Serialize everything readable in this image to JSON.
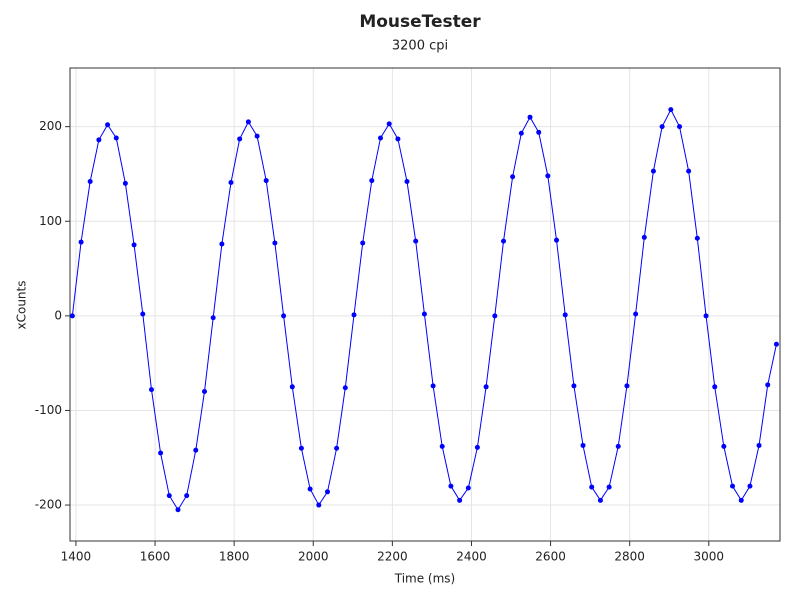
{
  "chart_data": {
    "type": "line",
    "title": "MouseTester",
    "subtitle": "3200 cpi",
    "x_label": "Time (ms)",
    "y_label": "xCounts",
    "x": [
      1391,
      1413,
      1436,
      1458,
      1480,
      1502,
      1525,
      1547,
      1569,
      1591,
      1614,
      1636,
      1658,
      1680,
      1703,
      1725,
      1747,
      1769,
      1792,
      1814,
      1836,
      1858,
      1881,
      1903,
      1925,
      1947,
      1970,
      1992,
      2014,
      2036,
      2059,
      2081,
      2103,
      2125,
      2148,
      2170,
      2192,
      2214,
      2237,
      2259,
      2281,
      2303,
      2326,
      2348,
      2370,
      2392,
      2415,
      2437,
      2459,
      2481,
      2504,
      2526,
      2548,
      2570,
      2593,
      2615,
      2637,
      2659,
      2682,
      2704,
      2726,
      2748,
      2771,
      2793,
      2815,
      2837,
      2860,
      2882,
      2904,
      2926,
      2949,
      2971,
      2993,
      3015,
      3038,
      3060,
      3082,
      3104,
      3127,
      3149,
      3171
    ],
    "series": [
      {
        "name": "xCounts",
        "color": "#0000ff",
        "values": [
          0,
          78,
          142,
          186,
          202,
          188,
          140,
          75,
          2,
          -78,
          -145,
          -190,
          -205,
          -190,
          -142,
          -80,
          -2,
          76,
          141,
          187,
          205,
          190,
          143,
          77,
          0,
          -75,
          -140,
          -183,
          -200,
          -186,
          -140,
          -76,
          1,
          77,
          143,
          188,
          203,
          187,
          142,
          79,
          2,
          -74,
          -138,
          -180,
          -195,
          -182,
          -139,
          -75,
          0,
          79,
          147,
          193,
          210,
          194,
          148,
          80,
          1,
          -74,
          -137,
          -181,
          -195,
          -181,
          -138,
          -74,
          2,
          83,
          153,
          200,
          218,
          200,
          153,
          82,
          0,
          -75,
          -138,
          -180,
          -195,
          -180,
          -137,
          -73,
          -30
        ]
      }
    ],
    "xlim": [
      1385,
      3180
    ],
    "xticks": [
      1400,
      1600,
      1800,
      2000,
      2200,
      2400,
      2600,
      2800,
      3000
    ],
    "ylim": [
      -238,
      262
    ],
    "yticks": [
      -200,
      -100,
      0,
      100,
      200
    ],
    "grid": true
  }
}
